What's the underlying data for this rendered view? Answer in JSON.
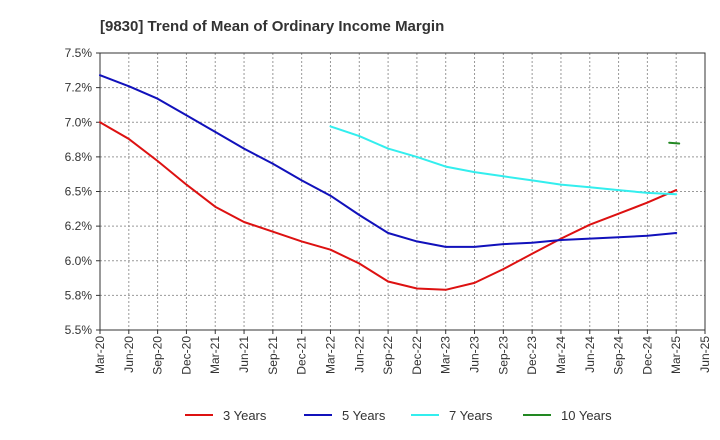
{
  "chart_data": {
    "type": "line",
    "title": "[9830]  Trend of Mean of Ordinary Income Margin",
    "xlabel": "",
    "ylabel": "",
    "ylim": [
      5.5,
      7.5
    ],
    "yticks": [
      5.5,
      5.75,
      6.0,
      6.25,
      6.5,
      6.75,
      7.0,
      7.25,
      7.5
    ],
    "ytick_labels": [
      "5.5%",
      "5.8%",
      "6.0%",
      "6.2%",
      "6.5%",
      "6.8%",
      "7.0%",
      "7.2%",
      "7.5%"
    ],
    "x_categories": [
      "Mar-20",
      "Jun-20",
      "Sep-20",
      "Dec-20",
      "Mar-21",
      "Jun-21",
      "Sep-21",
      "Dec-21",
      "Mar-22",
      "Jun-22",
      "Sep-22",
      "Dec-22",
      "Mar-23",
      "Jun-23",
      "Sep-23",
      "Dec-23",
      "Mar-24",
      "Jun-24",
      "Sep-24",
      "Dec-24",
      "Mar-25",
      "Jun-25"
    ],
    "grid": true,
    "legend_position": "bottom",
    "series": [
      {
        "name": "3 Years",
        "color": "#dd1111",
        "start_index": 0,
        "values": [
          7.0,
          6.88,
          6.72,
          6.55,
          6.39,
          6.28,
          6.21,
          6.14,
          6.08,
          5.98,
          5.85,
          5.8,
          5.79,
          5.84,
          5.94,
          6.05,
          6.16,
          6.26,
          6.34,
          6.42,
          6.51
        ]
      },
      {
        "name": "5 Years",
        "color": "#1111bb",
        "start_index": 0,
        "values": [
          7.34,
          7.26,
          7.17,
          7.05,
          6.93,
          6.81,
          6.7,
          6.58,
          6.47,
          6.33,
          6.2,
          6.14,
          6.1,
          6.1,
          6.12,
          6.13,
          6.15,
          6.16,
          6.17,
          6.18,
          6.2
        ]
      },
      {
        "name": "7 Years",
        "color": "#33eeee",
        "start_index": 8,
        "values": [
          6.97,
          6.9,
          6.81,
          6.75,
          6.68,
          6.64,
          6.61,
          6.58,
          6.55,
          6.53,
          6.51,
          6.49,
          6.48
        ]
      },
      {
        "name": "10 Years",
        "color": "#228822",
        "start_index": 20,
        "values": [
          6.85
        ]
      }
    ]
  }
}
